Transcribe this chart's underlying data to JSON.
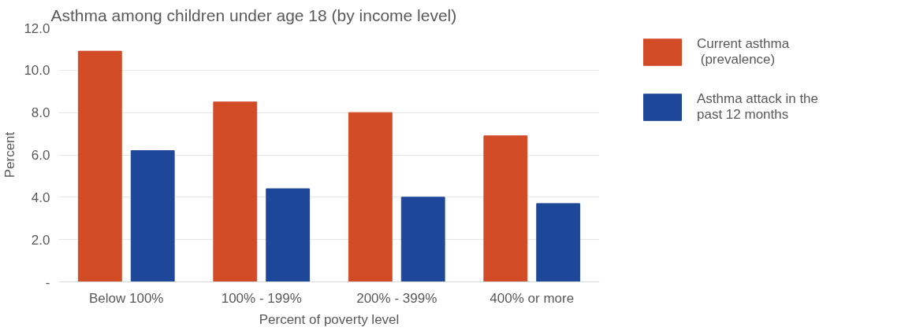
{
  "chart_data": {
    "type": "bar",
    "title": "Asthma among children under age 18 (by income level)",
    "xlabel": "Percent of poverty level",
    "ylabel": "Percent",
    "categories": [
      "Below 100%",
      "100% - 199%",
      "200% - 399%",
      "400% or more"
    ],
    "series": [
      {
        "name": "Current asthma\n (prevalence)",
        "color": "#d24b27",
        "values": [
          10.9,
          8.5,
          8.0,
          6.9
        ]
      },
      {
        "name": "Asthma attack in the\npast 12 months",
        "color": "#1f4799",
        "values": [
          6.2,
          4.4,
          4.0,
          3.7
        ]
      }
    ],
    "ylim": [
      0,
      12
    ],
    "yticks": [
      {
        "value": 0,
        "label": "-"
      },
      {
        "value": 2,
        "label": "2.0"
      },
      {
        "value": 4,
        "label": "4.0"
      },
      {
        "value": 6,
        "label": "6.0"
      },
      {
        "value": 8,
        "label": "8.0"
      },
      {
        "value": 10,
        "label": "10.0"
      },
      {
        "value": 12,
        "label": "12.0"
      }
    ],
    "grid": "y",
    "legend": "right"
  }
}
